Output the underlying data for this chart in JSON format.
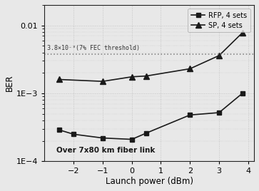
{
  "rfp_x": [
    -2.5,
    -2,
    -1,
    0,
    0.5,
    2,
    3,
    3.8
  ],
  "rfp_y": [
    0.00029,
    0.00025,
    0.00022,
    0.00021,
    0.00026,
    0.00048,
    0.00052,
    0.001
  ],
  "sp_x": [
    -2.5,
    -1,
    0,
    0.5,
    2,
    3,
    3.8
  ],
  "sp_y": [
    0.0016,
    0.0015,
    0.00175,
    0.0018,
    0.0023,
    0.0036,
    0.0078
  ],
  "fec_threshold": 0.0038,
  "fec_label": "3.8×10⁻³(7% FEC threshold)",
  "xlabel": "Launch power (dBm)",
  "ylabel": "BER",
  "annotation": "Over 7x80 km fiber link",
  "legend_rfp": "RFP, 4 sets",
  "legend_sp": "SP, 4 sets",
  "xlim": [
    -3,
    4.2
  ],
  "ylim_log": [
    0.0001,
    0.02
  ],
  "bg_color": "#e8e8e8",
  "line_color": "#1a1a1a",
  "fec_line_color": "#888888",
  "dot_color": "#cccccc"
}
